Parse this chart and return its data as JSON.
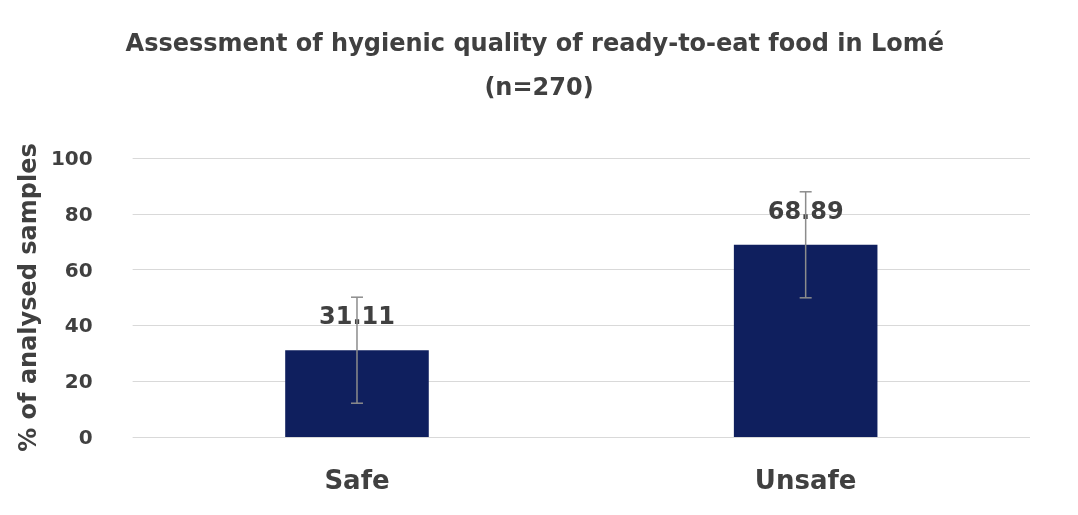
{
  "chart_data": {
    "type": "bar",
    "title": "Assessment of hygienic quality of ready-to-eat food in Lomé (n=270)",
    "ylabel": "% of analysed samples",
    "categories": [
      "Safe",
      "Unsafe"
    ],
    "values": [
      31.11,
      68.89
    ],
    "errors": [
      19,
      19
    ],
    "color": "#0f1f5e",
    "ylim": [
      0,
      100
    ],
    "yticks": [
      0,
      20,
      40,
      60,
      80,
      100
    ],
    "grid": "y",
    "data_labels": true
  }
}
